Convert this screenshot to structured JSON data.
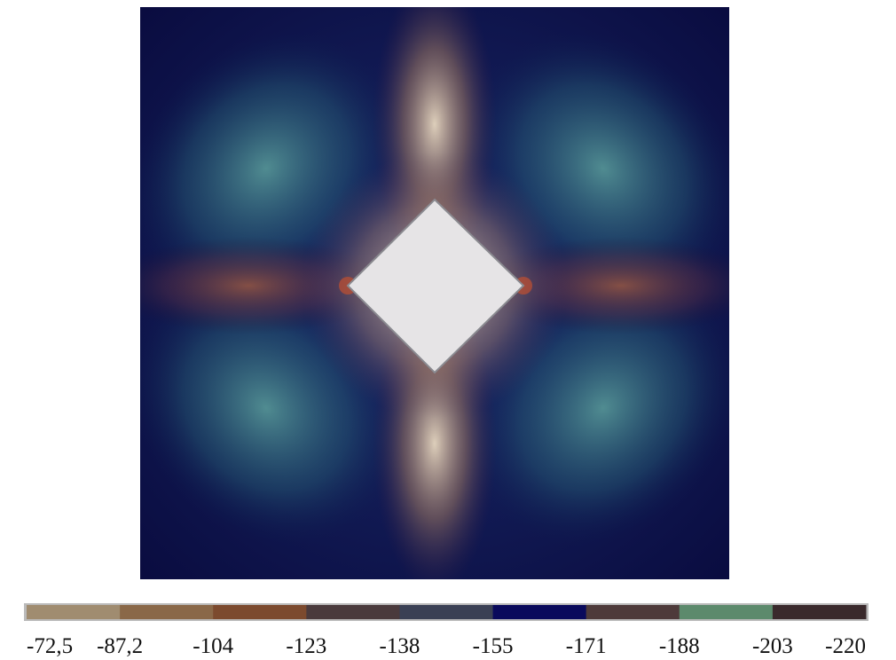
{
  "colorbar": {
    "segments": [
      "#a08c70",
      "#8a6848",
      "#7c4a2e",
      "#4a3a3c",
      "#3a4054",
      "#0a0a5c",
      "#4e3a3a",
      "#5c8a6c",
      "#3a2a2c"
    ],
    "tick_labels": [
      "-72,5",
      "-87,2",
      "-104",
      "-123",
      "-138",
      "-155",
      "-171",
      "-188",
      "-203",
      "-220"
    ]
  }
}
